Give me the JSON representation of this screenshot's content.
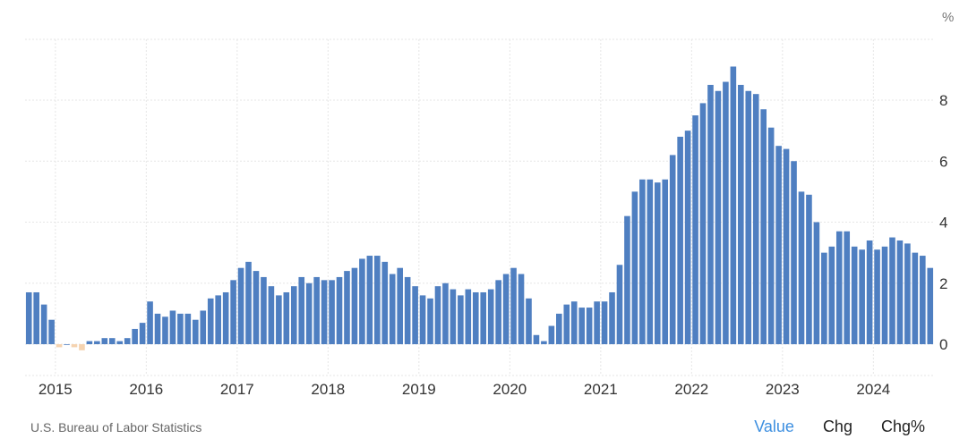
{
  "chart_data": {
    "type": "bar",
    "unit": "%",
    "x_start": "2014-09",
    "x_end": "2024-08",
    "ylim": [
      -1,
      10
    ],
    "yticks": [
      0,
      2,
      4,
      6,
      8
    ],
    "xticks": [
      "2015",
      "2016",
      "2017",
      "2018",
      "2019",
      "2020",
      "2021",
      "2022",
      "2023",
      "2024"
    ],
    "grid": true,
    "positive_color": "#4f7fc1",
    "negative_color": "#f5d3b0",
    "values": [
      1.7,
      1.7,
      1.3,
      0.8,
      -0.1,
      0.0,
      -0.1,
      -0.2,
      0.1,
      0.1,
      0.2,
      0.2,
      0.1,
      0.2,
      0.5,
      0.7,
      1.4,
      1.0,
      0.9,
      1.1,
      1.0,
      1.0,
      0.8,
      1.1,
      1.5,
      1.6,
      1.7,
      2.1,
      2.5,
      2.7,
      2.4,
      2.2,
      1.9,
      1.6,
      1.7,
      1.9,
      2.2,
      2.0,
      2.2,
      2.1,
      2.1,
      2.2,
      2.4,
      2.5,
      2.8,
      2.9,
      2.9,
      2.7,
      2.3,
      2.5,
      2.2,
      1.9,
      1.6,
      1.5,
      1.9,
      2.0,
      1.8,
      1.6,
      1.8,
      1.7,
      1.7,
      1.8,
      2.1,
      2.3,
      2.5,
      2.3,
      1.5,
      0.3,
      0.1,
      0.6,
      1.0,
      1.3,
      1.4,
      1.2,
      1.2,
      1.4,
      1.4,
      1.7,
      2.6,
      4.2,
      5.0,
      5.4,
      5.4,
      5.3,
      5.4,
      6.2,
      6.8,
      7.0,
      7.5,
      7.9,
      8.5,
      8.3,
      8.6,
      9.1,
      8.5,
      8.3,
      8.2,
      7.7,
      7.1,
      6.5,
      6.4,
      6.0,
      5.0,
      4.9,
      4.0,
      3.0,
      3.2,
      3.7,
      3.7,
      3.2,
      3.1,
      3.4,
      3.1,
      3.2,
      3.5,
      3.4,
      3.3,
      3.0,
      2.9,
      2.5
    ]
  },
  "footer": {
    "source": "U.S. Bureau of Labor Statistics",
    "tabs": [
      {
        "label": "Value",
        "active": true
      },
      {
        "label": "Chg",
        "active": false
      },
      {
        "label": "Chg%",
        "active": false
      }
    ]
  }
}
